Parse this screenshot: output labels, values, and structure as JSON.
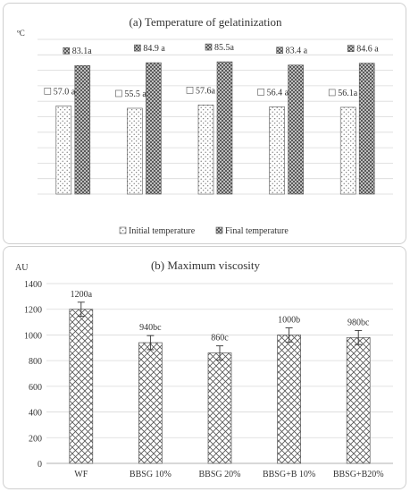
{
  "chart_data": [
    {
      "type": "bar",
      "title": "(a) Temperature of gelatinization",
      "ylabel": "ºC",
      "xlabel": "",
      "categories": [
        "",
        "",
        "",
        "",
        ""
      ],
      "grid": true,
      "ylim": [
        0,
        100
      ],
      "legend_position": "bottom",
      "series": [
        {
          "name": "Initial temperature",
          "values": [
            57.0,
            55.5,
            57.6,
            56.4,
            56.1
          ],
          "labels": [
            "57.0 a",
            "55.5 a",
            "57.6a",
            "56.4 a",
            "56.1a"
          ],
          "pattern": "dots"
        },
        {
          "name": "Final temperature",
          "values": [
            83.1,
            84.9,
            85.5,
            83.4,
            84.6
          ],
          "labels": [
            "83.1a",
            "84.9 a",
            "85.5a",
            "83.4 a",
            "84.6 a"
          ],
          "pattern": "dark-checker"
        }
      ]
    },
    {
      "type": "bar",
      "title": "(b) Maximum viscosity",
      "ylabel": "AU",
      "xlabel": "",
      "categories": [
        "WF",
        "BBSG 10%",
        "BBSG 20%",
        "BBSG+B 10%",
        "BBSG+B20%"
      ],
      "ylim": [
        0,
        1400
      ],
      "yticks": [
        0,
        200,
        400,
        600,
        800,
        1000,
        1200,
        1400
      ],
      "grid": true,
      "series": [
        {
          "values": [
            1200,
            940,
            860,
            1000,
            980
          ],
          "errors": [
            55,
            55,
            55,
            55,
            55
          ],
          "labels": [
            "1200a",
            "940bc",
            "860c",
            "1000b",
            "980bc"
          ],
          "pattern": "crosshatch"
        }
      ]
    }
  ]
}
